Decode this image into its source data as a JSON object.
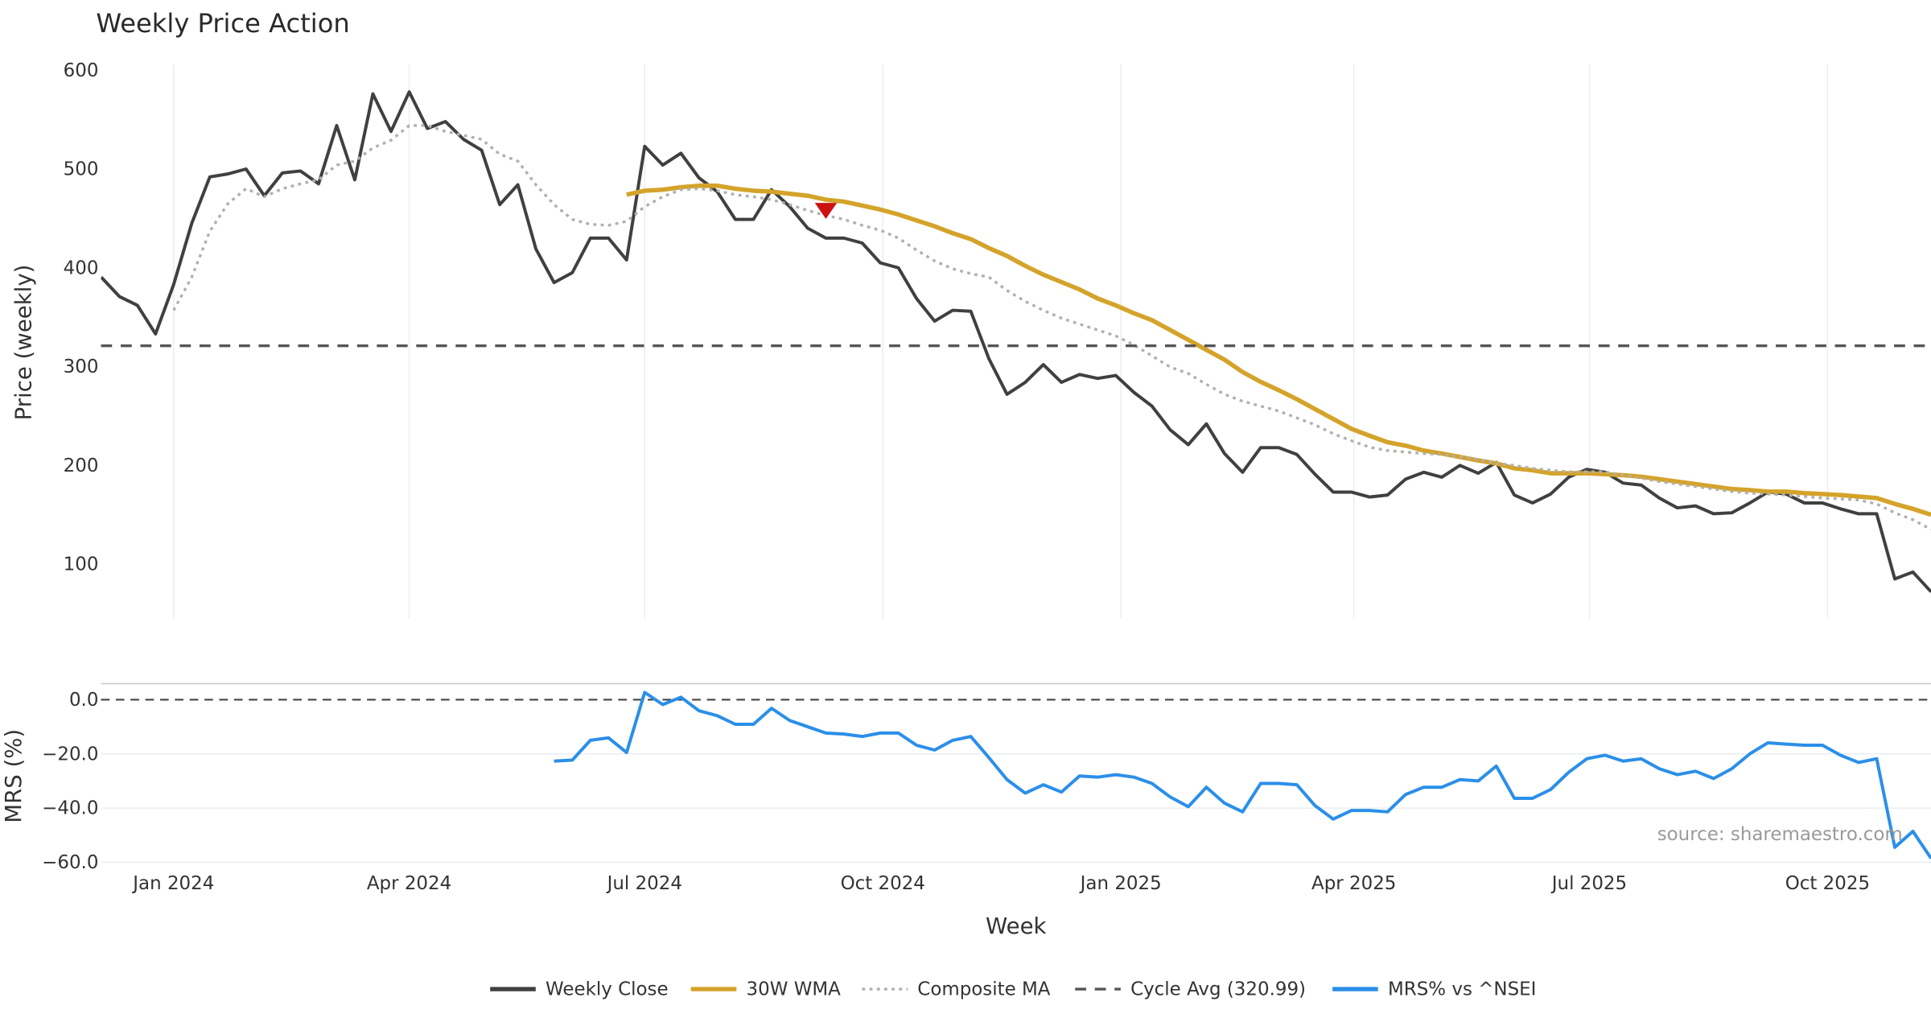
{
  "chart_data": [
    {
      "type": "line",
      "title": "Weekly Price Action",
      "ylabel": "Price (weekly)",
      "ylim": [
        40,
        600
      ],
      "yticks": [
        "100",
        "200",
        "300",
        "400",
        "500",
        "600"
      ],
      "ytick_values": [
        100,
        200,
        300,
        400,
        500,
        600
      ],
      "x_start": "2023-12-04",
      "x_step_days": 7,
      "grid": "vertical",
      "series": [
        {
          "name": "Weekly Close",
          "color": "#404040",
          "style": "solid",
          "start_index": 0,
          "values": [
            390.5,
            371,
            362,
            333,
            383,
            445,
            492,
            495,
            500,
            473,
            496,
            498,
            485,
            544,
            489,
            576,
            538,
            578,
            541,
            548,
            530,
            519,
            464,
            484,
            419,
            385,
            395,
            430,
            430,
            408,
            523,
            504,
            516,
            491,
            477,
            449,
            449,
            479,
            462,
            440,
            430,
            430,
            425,
            405,
            400,
            369,
            346,
            357,
            356,
            308,
            272,
            284,
            302,
            284,
            292,
            288,
            291,
            274,
            260,
            236,
            221,
            242,
            212,
            193,
            218,
            218,
            211,
            191,
            173,
            173,
            168,
            170,
            186,
            193,
            188,
            200,
            192,
            203,
            170,
            162,
            171,
            188,
            196,
            193,
            182,
            180,
            167,
            157,
            159,
            151,
            152,
            162,
            173,
            171,
            162,
            162,
            156,
            151,
            151,
            85,
            92,
            72
          ]
        },
        {
          "name": "30W WMA",
          "color": "#d4a32a",
          "style": "solid",
          "start_index": 29,
          "values": [
            474,
            478,
            479,
            481.5,
            483,
            483,
            480,
            478,
            477,
            475,
            473,
            469,
            467,
            463,
            459,
            454,
            448,
            442,
            435,
            429,
            420,
            412,
            402,
            393,
            385.5,
            378,
            369,
            362,
            354,
            347,
            337,
            327,
            317,
            307,
            294.5,
            284.5,
            276,
            267,
            257,
            247,
            237,
            230,
            223.5,
            220,
            215,
            212,
            208.5,
            205,
            202,
            197,
            195,
            192,
            192,
            192,
            191,
            190,
            188.5,
            186,
            183.5,
            181,
            178.5,
            176,
            175,
            173.5,
            173.5,
            172,
            171,
            170,
            168.5,
            167,
            161,
            156,
            150
          ]
        },
        {
          "name": "Composite MA",
          "color": "#b0b0b0",
          "style": "dotted",
          "start_index": 4,
          "values": [
            357,
            390.5,
            437,
            465,
            480,
            472,
            480,
            485,
            489,
            504,
            508,
            521.5,
            529,
            544,
            544,
            538,
            534,
            530,
            515,
            508,
            484,
            464,
            449,
            444,
            443,
            447,
            462,
            472,
            479,
            480,
            478,
            474,
            472,
            469,
            464,
            458,
            453,
            449,
            443,
            438,
            430,
            418,
            407,
            399,
            394,
            390.5,
            377,
            366,
            357,
            349,
            343,
            337,
            331,
            322,
            311,
            299.5,
            293,
            282,
            272,
            265,
            260,
            255,
            248,
            241,
            232,
            225,
            218.5,
            215,
            213.5,
            212,
            211,
            208.5,
            206,
            202,
            200,
            197,
            195,
            193.5,
            193.5,
            193.5,
            190,
            187,
            183.5,
            181,
            178.5,
            176,
            173.5,
            172,
            171,
            170,
            168.5,
            167,
            166,
            165,
            161,
            152,
            145,
            135
          ]
        },
        {
          "name": "Cycle Avg (320.99)",
          "color": "#555555",
          "style": "dashed",
          "constant": 320.99
        }
      ],
      "markers": [
        {
          "type": "sell-signal",
          "shape": "triangle-down",
          "color": "#cc1111",
          "index": 40,
          "value": 457
        }
      ]
    },
    {
      "type": "line",
      "ylabel": "MRS (%)",
      "ylim": [
        -60,
        6
      ],
      "yticks": [
        "0.0",
        "−20.0",
        "−40.0",
        "−60.0"
      ],
      "ytick_values": [
        0,
        -20,
        -40,
        -60
      ],
      "xlabel": "Week",
      "xticks": [
        "Jan 2024",
        "Apr 2024",
        "Jul 2024",
        "Oct 2024",
        "Jan 2025",
        "Apr 2025",
        "Jul 2025",
        "Oct 2025"
      ],
      "xtick_dates": [
        "2024-01-01",
        "2024-04-01",
        "2024-07-01",
        "2024-10-01",
        "2025-01-01",
        "2025-04-01",
        "2025-07-01",
        "2025-10-01"
      ],
      "grid": "horizontal",
      "reference_line": {
        "value": 0,
        "style": "dashed",
        "color": "#444444"
      },
      "series": [
        {
          "name": "MRS% vs ^NSEI",
          "color": "#2b8fe8",
          "style": "solid",
          "start_index": 25,
          "values": [
            -22.7,
            -22.3,
            -15,
            -14.1,
            -19.5,
            2.7,
            -1.8,
            0.9,
            -4.1,
            -5.9,
            -9.1,
            -9.1,
            -3.2,
            -7.7,
            -10,
            -12.3,
            -12.7,
            -13.6,
            -12.3,
            -12.3,
            -16.8,
            -18.6,
            -15,
            -13.6,
            -21.4,
            -29.5,
            -34.5,
            -31.4,
            -34.1,
            -28.2,
            -28.6,
            -27.7,
            -28.6,
            -30.9,
            -35.9,
            -39.5,
            -32.3,
            -38.2,
            -41.4,
            -30.9,
            -30.9,
            -31.4,
            -39.1,
            -44.1,
            -40.9,
            -40.9,
            -41.4,
            -35,
            -32.3,
            -32.3,
            -29.5,
            -30,
            -24.5,
            -36.4,
            -36.4,
            -33.2,
            -26.8,
            -21.8,
            -20.5,
            -22.7,
            -21.8,
            -25.5,
            -27.7,
            -26.4,
            -29.1,
            -25.5,
            -20,
            -15.9,
            -16.4,
            -16.8,
            -16.8,
            -20.5,
            -23.2,
            -21.8,
            -54.5,
            -48.6,
            -58.6
          ]
        }
      ],
      "annotation": "source: sharemaestro.com"
    }
  ],
  "legend": {
    "placement": "bottom-center",
    "items": [
      {
        "label": "Weekly Close",
        "color": "#404040",
        "style": "solid"
      },
      {
        "label": "30W WMA",
        "color": "#d4a32a",
        "style": "solid"
      },
      {
        "label": "Composite MA",
        "color": "#b0b0b0",
        "style": "dotted"
      },
      {
        "label": "Cycle Avg (320.99)",
        "color": "#555555",
        "style": "dashed"
      },
      {
        "label": "MRS% vs ^NSEI",
        "color": "#2b8fe8",
        "style": "solid"
      }
    ]
  }
}
